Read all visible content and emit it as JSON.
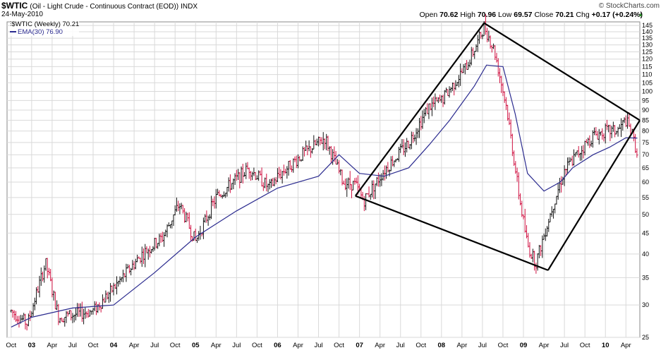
{
  "header": {
    "symbol": "$WTIC",
    "description": "(Oil - Light Crude - Continuous Contract (EOD))",
    "exchange": "INDX",
    "date": "24-May-2010",
    "brand": "© StockCharts.com",
    "ohlc": {
      "open_label": "Open",
      "open": "70.62",
      "high_label": "High",
      "high": "70.96",
      "low_label": "Low",
      "low": "69.57",
      "close_label": "Close",
      "close": "70.21",
      "chg_label": "Chg",
      "chg": "+0.17 (+0.24%)"
    }
  },
  "legend": {
    "series_label": "$WTIC (Weekly) 70.21",
    "ema_label": "EMA(30) 76.90"
  },
  "colors": {
    "up_bar": "#111111",
    "down_bar": "#d01040",
    "ema": "#2b2b8f",
    "trendline": "#000000",
    "grid": "#d9d9d9",
    "up_arrow": "#2a8a2a"
  },
  "chart_data": {
    "type": "line",
    "scale": "log",
    "ylim": [
      25,
      148
    ],
    "yticks": [
      25,
      30,
      35,
      40,
      45,
      50,
      55,
      60,
      65,
      70,
      75,
      80,
      85,
      90,
      95,
      100,
      105,
      110,
      115,
      120,
      125,
      130,
      135,
      140,
      145
    ],
    "xaxis_ticks": [
      "Oct",
      "03",
      "Apr",
      "Jul",
      "Oct",
      "04",
      "Apr",
      "Jul",
      "Oct",
      "05",
      "Apr",
      "Jul",
      "Oct",
      "06",
      "Apr",
      "Jul",
      "Oct",
      "07",
      "Apr",
      "Jul",
      "Oct",
      "08",
      "Apr",
      "Jul",
      "Oct",
      "09",
      "Apr",
      "Jul",
      "Oct",
      "10",
      "Apr"
    ],
    "xaxis_bold": [
      "03",
      "04",
      "05",
      "06",
      "07",
      "08",
      "09",
      "10"
    ],
    "grid": true,
    "price_anchors": {
      "note_units": "dates as YYYY.fraction-of-year on x, USD on y",
      "x": [
        2002.75,
        2002.95,
        2003.17,
        2003.33,
        2003.75,
        2004.0,
        2004.35,
        2004.6,
        2004.8,
        2005.0,
        2005.25,
        2005.65,
        2005.9,
        2006.0,
        2006.3,
        2006.58,
        2006.8,
        2006.95,
        2007.05,
        2007.3,
        2007.6,
        2007.85,
        2008.0,
        2008.3,
        2008.45,
        2008.52,
        2008.65,
        2008.8,
        2008.95,
        2009.05,
        2009.15,
        2009.35,
        2009.5,
        2009.65,
        2009.85,
        2010.0,
        2010.15,
        2010.25,
        2010.33,
        2010.39
      ],
      "y": [
        29,
        27,
        38,
        28,
        29,
        33,
        40,
        44,
        53,
        43,
        55,
        65,
        58,
        62,
        70,
        77,
        60,
        59,
        54,
        64,
        75,
        92,
        95,
        115,
        133,
        145,
        125,
        90,
        55,
        42,
        38,
        52,
        64,
        70,
        78,
        80,
        80,
        85,
        78,
        70.21
      ]
    },
    "series": [
      {
        "name": "$WTIC (Weekly)",
        "kind": "ohlc-bars",
        "last": 70.21
      },
      {
        "name": "EMA(30)",
        "kind": "line",
        "last": 76.9,
        "x": [
          2002.75,
          2003.0,
          2003.5,
          2004.0,
          2004.5,
          2005.0,
          2005.5,
          2006.0,
          2006.5,
          2006.75,
          2007.0,
          2007.3,
          2007.6,
          2007.85,
          2008.1,
          2008.4,
          2008.55,
          2008.75,
          2008.9,
          2009.05,
          2009.25,
          2009.45,
          2009.6,
          2009.85,
          2010.05,
          2010.25,
          2010.39
        ],
        "y": [
          26.5,
          28,
          29.5,
          30,
          36,
          44,
          51,
          58,
          62,
          70,
          63,
          62,
          65,
          74,
          85,
          103,
          116,
          115,
          88,
          63,
          57,
          60,
          65,
          70,
          73,
          77,
          76.9
        ]
      }
    ],
    "trendlines": [
      {
        "from": [
          2006.95,
          55.5
        ],
        "to": [
          2008.52,
          147
        ]
      },
      {
        "from": [
          2008.52,
          147
        ],
        "to": [
          2010.42,
          85
        ]
      },
      {
        "from": [
          2006.95,
          55.5
        ],
        "to": [
          2009.3,
          36.5
        ]
      },
      {
        "from": [
          2009.3,
          36.5
        ],
        "to": [
          2010.42,
          85
        ]
      }
    ]
  }
}
